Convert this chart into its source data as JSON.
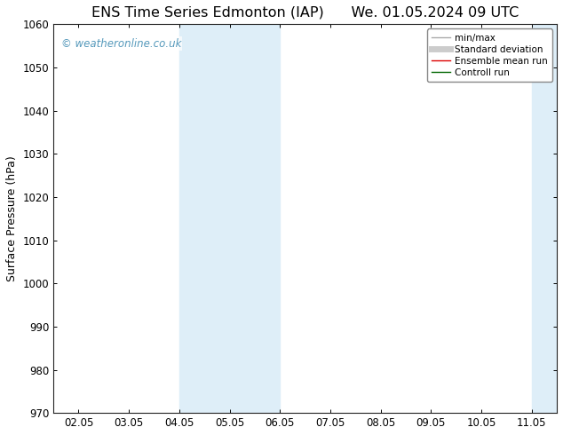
{
  "title_left": "ENS Time Series Edmonton (IAP)",
  "title_right": "We. 01.05.2024 09 UTC",
  "ylabel": "Surface Pressure (hPa)",
  "ylim": [
    970,
    1060
  ],
  "yticks": [
    970,
    980,
    990,
    1000,
    1010,
    1020,
    1030,
    1040,
    1050,
    1060
  ],
  "x_labels": [
    "02.05",
    "03.05",
    "04.05",
    "05.05",
    "06.05",
    "07.05",
    "08.05",
    "09.05",
    "10.05",
    "11.05"
  ],
  "x_values": [
    0,
    1,
    2,
    3,
    4,
    5,
    6,
    7,
    8,
    9
  ],
  "xlim": [
    -0.5,
    9.5
  ],
  "shaded_regions": [
    {
      "xmin": 2.0,
      "xmax": 3.0,
      "color": "#deeef8"
    },
    {
      "xmin": 3.0,
      "xmax": 4.0,
      "color": "#deeef8"
    },
    {
      "xmin": 9.0,
      "xmax": 9.5,
      "color": "#deeef8"
    },
    {
      "xmin": 9.5,
      "xmax": 10.0,
      "color": "#deeef8"
    }
  ],
  "watermark_text": "© weatheronline.co.uk",
  "watermark_color": "#5599bb",
  "background_color": "#ffffff",
  "legend_items": [
    {
      "label": "min/max",
      "color": "#aaaaaa",
      "lw": 1.0,
      "style": "line"
    },
    {
      "label": "Standard deviation",
      "color": "#cccccc",
      "lw": 5,
      "style": "line"
    },
    {
      "label": "Ensemble mean run",
      "color": "#dd0000",
      "lw": 1.0,
      "style": "line"
    },
    {
      "label": "Controll run",
      "color": "#006600",
      "lw": 1.0,
      "style": "line"
    }
  ],
  "title_fontsize": 11.5,
  "axis_label_fontsize": 9,
  "tick_fontsize": 8.5,
  "legend_fontsize": 7.5,
  "spine_color": "#222222",
  "spine_lw": 0.8
}
